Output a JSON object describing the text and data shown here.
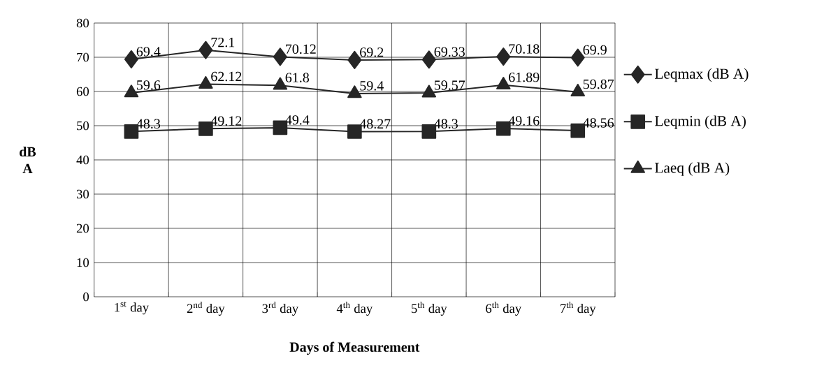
{
  "chart_data": {
    "type": "line",
    "xlabel": "Days of Measurement",
    "ylabel": "dB A",
    "categories": [
      "1$^{st}$ day",
      "2$^{nd}$ day",
      "3$^{rd}$ day",
      "4$^{th}$ day",
      "5$^{th}$ day",
      "6$^{th}$ day",
      "7$^{th}$ day"
    ],
    "series": [
      {
        "name": "Leqmax (dB A)",
        "color": "#262626",
        "marker": "diamond",
        "values": [
          69.4,
          72.1,
          70.12,
          69.2,
          69.33,
          70.18,
          69.9
        ]
      },
      {
        "name": "Leqmin (dB A)",
        "color": "#262626",
        "marker": "square",
        "values": [
          48.3,
          49.12,
          49.4,
          48.27,
          48.3,
          49.16,
          48.56
        ]
      },
      {
        "name": "Laeq (dB A)",
        "color": "#262626",
        "marker": "triangle",
        "values": [
          59.6,
          62.12,
          61.8,
          59.4,
          59.57,
          61.89,
          59.87
        ]
      }
    ],
    "ylim": [
      0,
      80
    ],
    "yticks": [
      0,
      10,
      20,
      30,
      40,
      50,
      60,
      70,
      80
    ],
    "grid": true,
    "legend": "right",
    "data_labels": true,
    "line_style": "solid"
  }
}
